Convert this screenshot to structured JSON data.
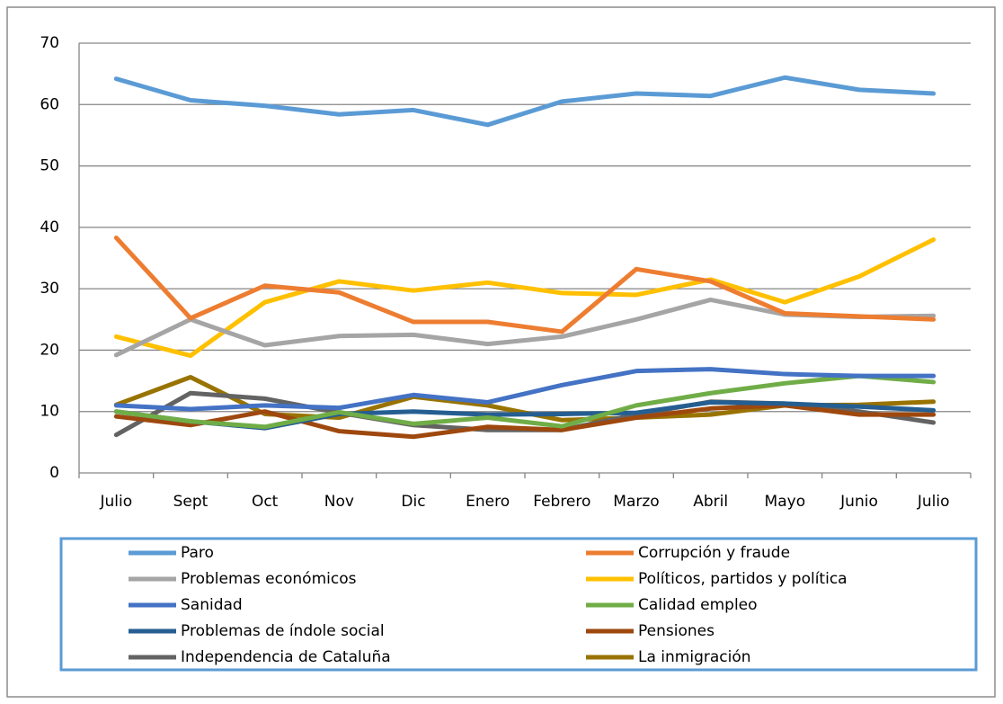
{
  "chart_data": {
    "type": "line",
    "categories": [
      "Julio",
      "Sept",
      "Oct",
      "Nov",
      "Dic",
      "Enero",
      "Febrero",
      "Marzo",
      "Abril",
      "Mayo",
      "Junio",
      "Julio"
    ],
    "ylim": [
      0,
      70
    ],
    "yticks": [
      0,
      10,
      20,
      30,
      40,
      50,
      60,
      70
    ],
    "grid": true,
    "legend": "bottom",
    "series": [
      {
        "name": "Paro",
        "color": "#5b9bd5",
        "values": [
          64.2,
          60.7,
          59.8,
          58.4,
          59.1,
          56.7,
          60.5,
          61.8,
          61.4,
          64.4,
          62.4,
          61.8
        ]
      },
      {
        "name": "Corrupción y fraude",
        "color": "#ed7d31",
        "values": [
          38.3,
          25.2,
          30.5,
          29.4,
          24.6,
          24.6,
          23.0,
          33.2,
          31.2,
          26.0,
          25.5,
          25.0
        ]
      },
      {
        "name": "Problemas económicos",
        "color": "#a5a5a5",
        "values": [
          19.2,
          25.0,
          20.8,
          22.3,
          22.5,
          21.0,
          22.2,
          25.0,
          28.2,
          25.8,
          25.4,
          25.6
        ]
      },
      {
        "name": "Políticos, partidos y política",
        "color": "#ffc000",
        "values": [
          22.2,
          19.1,
          27.8,
          31.2,
          29.7,
          31.0,
          29.3,
          29.0,
          31.5,
          27.8,
          32.0,
          38.0
        ]
      },
      {
        "name": "Sanidad",
        "color": "#4472c4",
        "values": [
          11.0,
          10.4,
          11.0,
          10.6,
          12.7,
          11.5,
          14.3,
          16.6,
          16.9,
          16.1,
          15.8,
          15.8
        ]
      },
      {
        "name": "Calidad empleo",
        "color": "#70ad47",
        "values": [
          10.0,
          8.4,
          7.5,
          9.9,
          8.0,
          9.0,
          7.6,
          11.0,
          13.0,
          14.6,
          15.8,
          14.8
        ]
      },
      {
        "name": "Problemas de índole social",
        "color": "#255e91",
        "values": [
          10.0,
          8.4,
          7.3,
          9.6,
          10.0,
          9.5,
          9.6,
          9.8,
          11.5,
          11.3,
          10.8,
          10.2
        ]
      },
      {
        "name": "Pensiones",
        "color": "#9e480e",
        "values": [
          9.2,
          7.8,
          10.0,
          6.8,
          5.9,
          7.5,
          7.0,
          9.0,
          10.5,
          11.0,
          9.5,
          9.5
        ]
      },
      {
        "name": "Independencia de Cataluña",
        "color": "#636363",
        "values": [
          6.2,
          13.0,
          12.1,
          9.8,
          7.8,
          7.0,
          7.0,
          9.5,
          11.6,
          11.3,
          10.0,
          8.2
        ]
      },
      {
        "name": "La inmigración",
        "color": "#997300",
        "values": [
          11.1,
          15.6,
          9.6,
          9.0,
          12.4,
          11.0,
          8.6,
          9.0,
          9.5,
          11.0,
          11.1,
          11.6
        ]
      }
    ]
  }
}
